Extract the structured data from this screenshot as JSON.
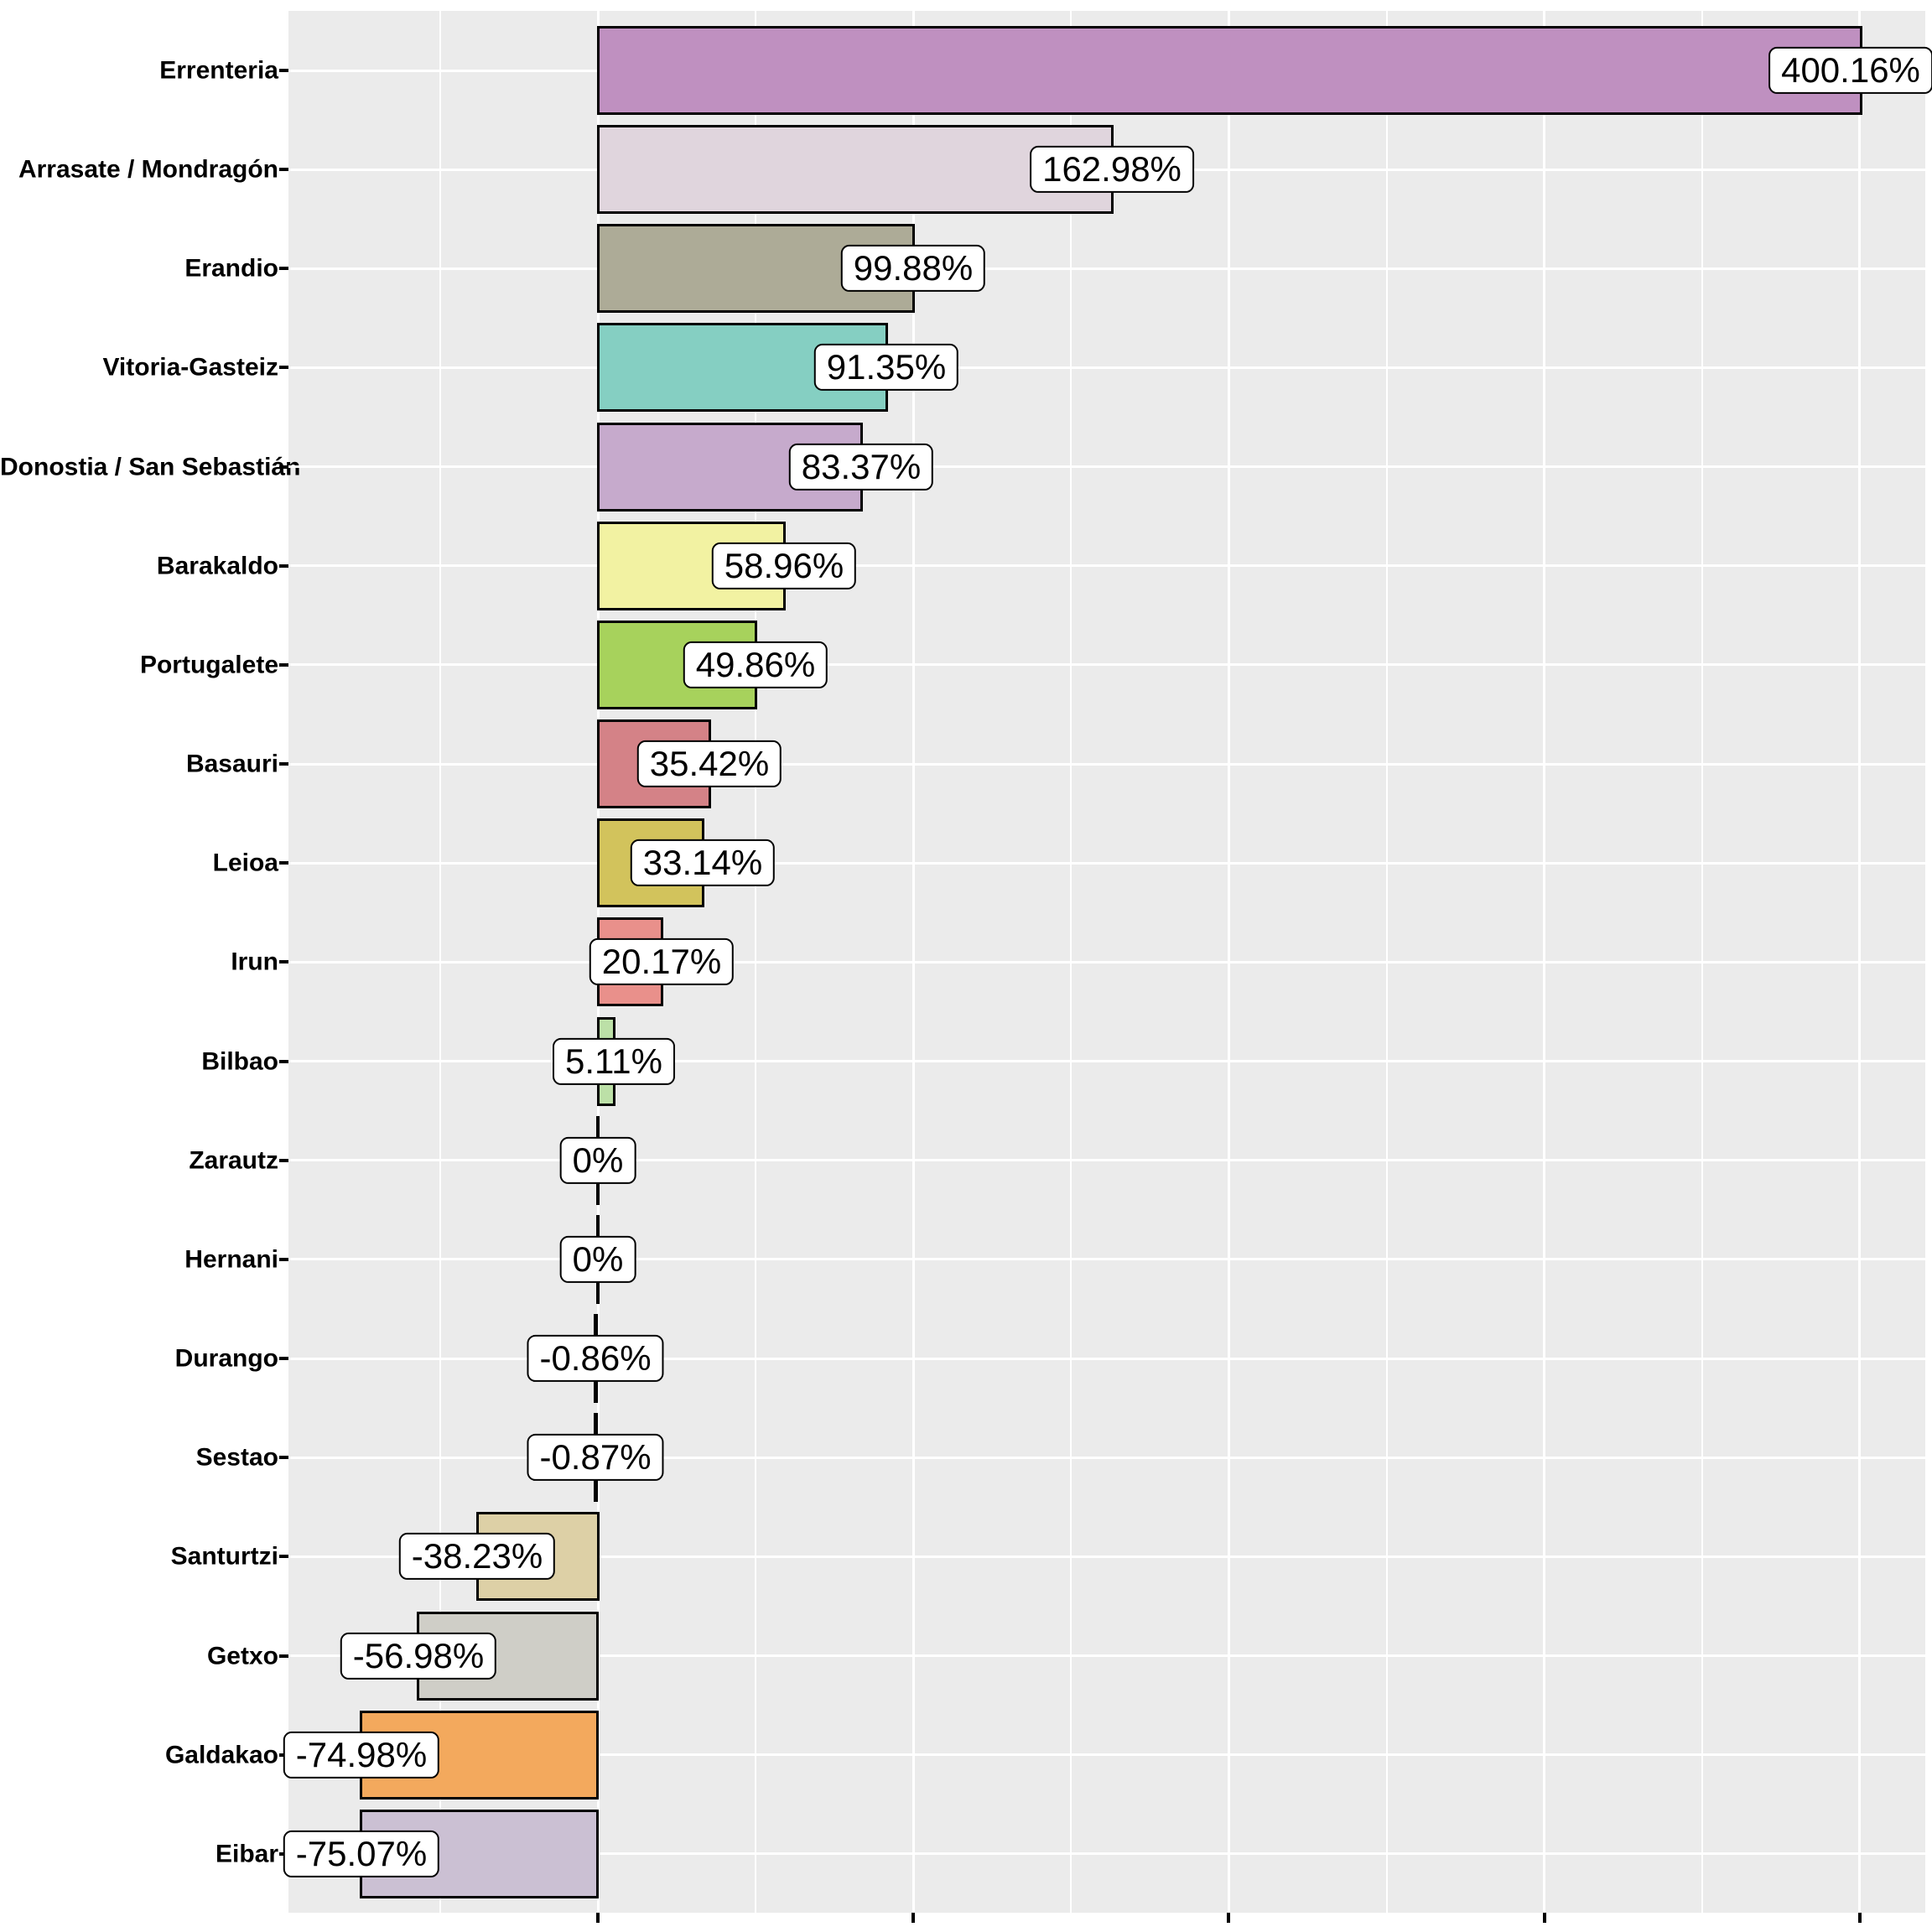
{
  "chart_data": {
    "type": "bar",
    "orientation": "horizontal",
    "title": "",
    "xlabel": "",
    "ylabel": "",
    "value_unit": "percent",
    "categories": [
      "Errenteria",
      "Arrasate / Mondragón",
      "Erandio",
      "Vitoria-Gasteiz",
      "Donostia / San Sebastián",
      "Barakaldo",
      "Portugalete",
      "Basauri",
      "Leioa",
      "Irun",
      "Bilbao",
      "Zarautz",
      "Hernani",
      "Durango",
      "Sestao",
      "Santurtzi",
      "Getxo",
      "Galdakao",
      "Eibar"
    ],
    "values": [
      400.16,
      162.98,
      99.88,
      91.35,
      83.37,
      58.96,
      49.86,
      35.42,
      33.14,
      20.17,
      5.11,
      0,
      0,
      -0.86,
      -0.87,
      -38.23,
      -56.98,
      -74.98,
      -75.07
    ],
    "bar_labels": [
      "400.16%",
      "162.98%",
      "99.88%",
      "91.35%",
      "83.37%",
      "58.96%",
      "49.86%",
      "35.42%",
      "33.14%",
      "20.17%",
      "5.11%",
      "0%",
      "0%",
      "-0.86%",
      "-0.87%",
      "-38.23%",
      "-56.98%",
      "-74.98%",
      "-75.07%"
    ],
    "bar_colors": [
      "#BF90C0",
      "#E0D5DD",
      "#ADAB97",
      "#85CFC2",
      "#C6AACC",
      "#F2F2A2",
      "#A7D25C",
      "#D48287",
      "#D2C35C",
      "#E9908B",
      "#BCE0A7",
      null,
      null,
      null,
      null,
      "#DDD0A6",
      "#CFCEC7",
      "#F3A95D",
      "#CBC0D3"
    ],
    "axis": {
      "x_major_breaks_pct": [
        0,
        100,
        200,
        300,
        400
      ],
      "x_minor_breaks_pct": [
        -50,
        50,
        150,
        250,
        350
      ],
      "x_tick_labels": [
        "",
        "",
        "",
        "",
        ""
      ],
      "x_range_pct": [
        -98,
        421
      ],
      "grid": "on",
      "legend": "none"
    },
    "style": {
      "panel_bg": "#EBEBEB",
      "grid_color": "#FFFFFF",
      "bar_border_color": "#000000",
      "label_box_bg": "#FFFFFF",
      "label_box_border": "#000000",
      "text_color": "#000000"
    }
  }
}
